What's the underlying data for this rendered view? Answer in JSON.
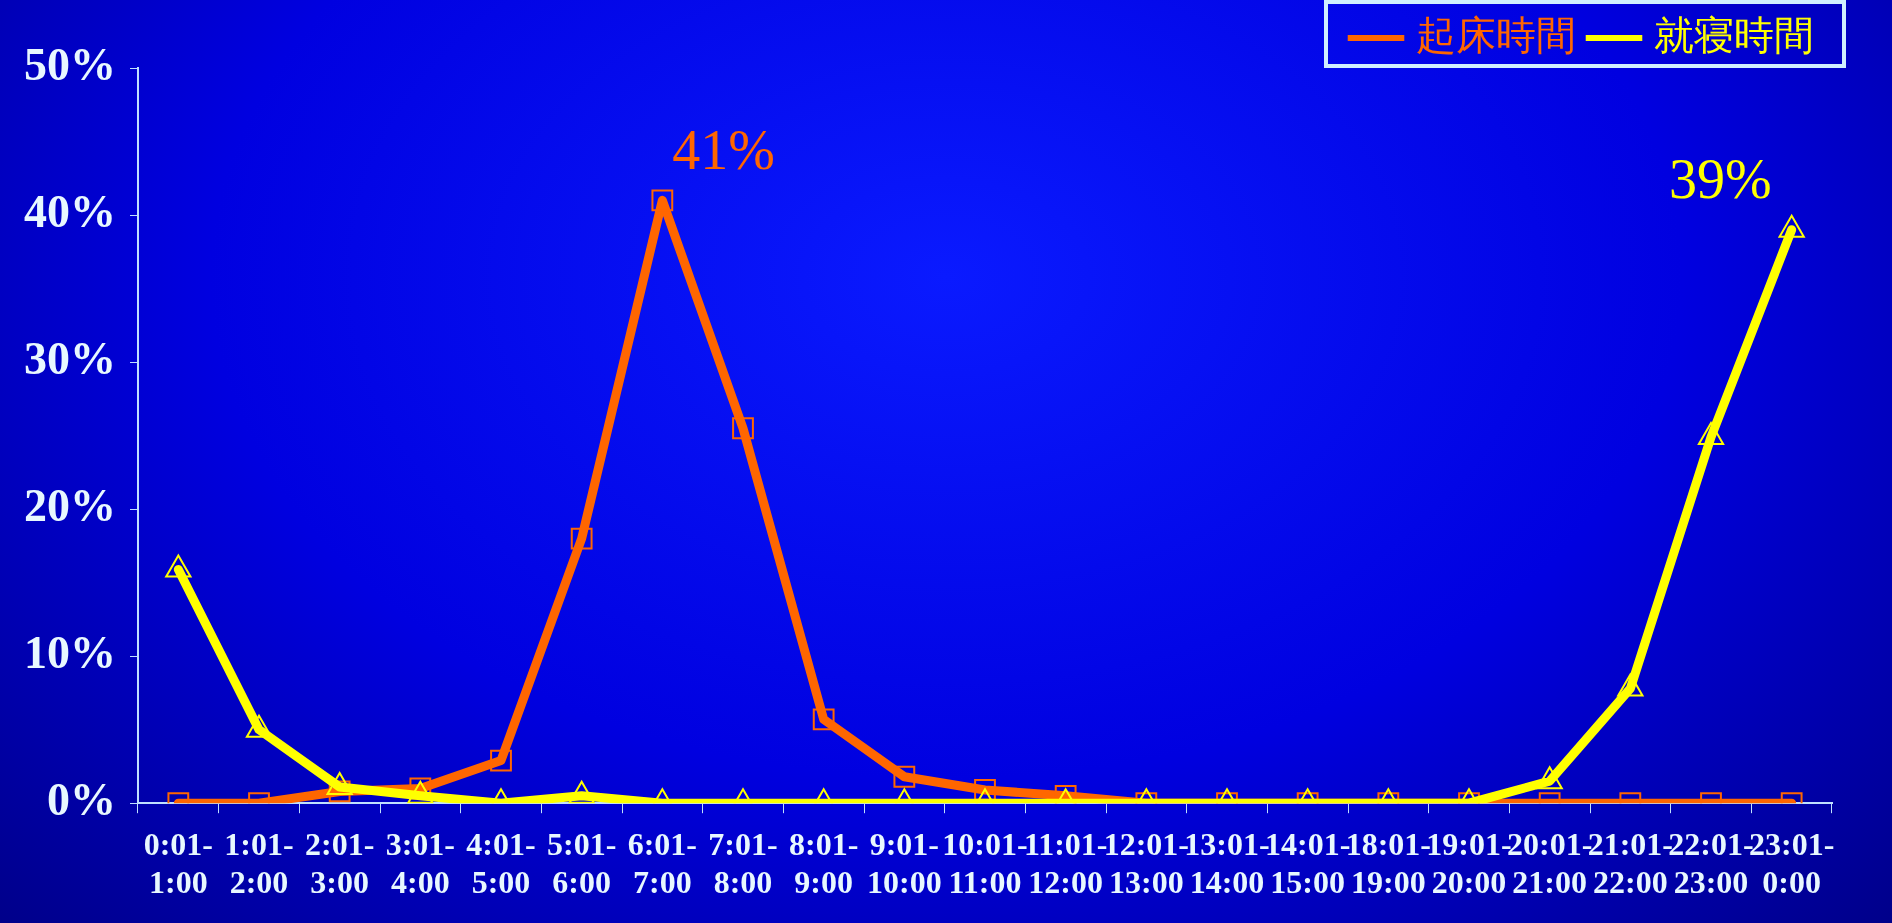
{
  "chart_data": {
    "type": "line",
    "categories": [
      "0:01-1:00",
      "1:01-2:00",
      "2:01-3:00",
      "3:01-4:00",
      "4:01-5:00",
      "5:01-6:00",
      "6:01-7:00",
      "7:01-8:00",
      "8:01-9:00",
      "9:01-10:00",
      "10:01-11:00",
      "11:01-12:00",
      "12:01-13:00",
      "13:01-14:00",
      "14:01-15:00",
      "18:01-19:00",
      "19:01-20:00",
      "20:01-21:00",
      "21:01-22:00",
      "22:01-23:00",
      "23:01-0:00"
    ],
    "series": [
      {
        "name": "起床時間",
        "color": "#ff6600",
        "marker": "square",
        "values": [
          0,
          0,
          0.8,
          1,
          2.9,
          18,
          41,
          25.5,
          5.7,
          1.8,
          0.9,
          0.5,
          0,
          0,
          0,
          0,
          0,
          0,
          0,
          0,
          0
        ]
      },
      {
        "name": "就寝時間",
        "color": "#ffff00",
        "marker": "triangle",
        "values": [
          15.9,
          5,
          1.1,
          0.5,
          0,
          0.5,
          0,
          0,
          0,
          0,
          0,
          0,
          0,
          0,
          0,
          0,
          0,
          1.5,
          7.8,
          24.9,
          39
        ]
      }
    ],
    "ylim": [
      0,
      50
    ],
    "yticks": [
      {
        "value": 0,
        "label": "0%"
      },
      {
        "value": 10,
        "label": "10%"
      },
      {
        "value": 20,
        "label": "20%"
      },
      {
        "value": 30,
        "label": "30%"
      },
      {
        "value": 40,
        "label": "40%"
      },
      {
        "value": 50,
        "label": "50%"
      }
    ],
    "annotations": [
      {
        "text": "41%",
        "x": "6:01-7:00",
        "y": 41
      },
      {
        "text": "39%",
        "x": "23:01-0:00",
        "y": 39
      }
    ],
    "legend": "top right",
    "grid": false,
    "line_style": "solid"
  }
}
